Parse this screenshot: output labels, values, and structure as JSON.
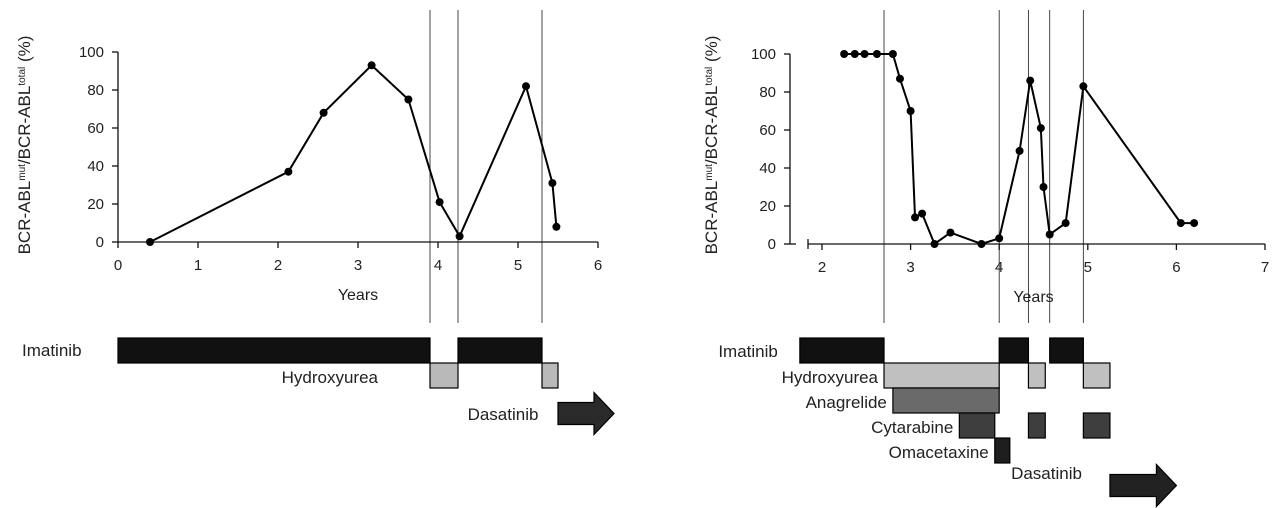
{
  "chart_data": [
    {
      "type": "line",
      "xlabel": "Years",
      "ylabel": {
        "base1": "BCR-ABL",
        "sup1": "mut",
        "sep": "/BCR-ABL",
        "sup2": "total",
        "unit": " (%)"
      },
      "xlim": [
        0,
        6
      ],
      "ylim": [
        0,
        100
      ],
      "xticks": [
        "0",
        "1",
        "2",
        "3",
        "4",
        "5",
        "6"
      ],
      "yticks": [
        "0",
        "20",
        "40",
        "60",
        "80",
        "100"
      ],
      "points": [
        {
          "x": 0.4,
          "y": 0
        },
        {
          "x": 2.13,
          "y": 37
        },
        {
          "x": 2.57,
          "y": 68
        },
        {
          "x": 3.17,
          "y": 93
        },
        {
          "x": 3.63,
          "y": 75
        },
        {
          "x": 4.02,
          "y": 21
        },
        {
          "x": 4.27,
          "y": 3
        },
        {
          "x": 5.1,
          "y": 82
        },
        {
          "x": 5.43,
          "y": 31
        },
        {
          "x": 5.48,
          "y": 8
        }
      ],
      "vlines": [
        3.9,
        4.25,
        5.3
      ],
      "treatments": [
        {
          "name": "Imatinib",
          "color": "#111111",
          "intervals": [
            [
              0,
              3.9
            ],
            [
              4.25,
              5.3
            ]
          ]
        },
        {
          "name": "Hydroxyurea",
          "color": "#b9b9b9",
          "intervals": [
            [
              3.9,
              4.25
            ],
            [
              5.3,
              5.5
            ]
          ]
        },
        {
          "name": "Dasatinib",
          "color": "#2a2a2a",
          "arrow": true,
          "intervals": [
            [
              5.5,
              6.2
            ]
          ]
        }
      ]
    },
    {
      "type": "line",
      "xlabel": "Years",
      "ylabel": {
        "base1": "BCR-ABL",
        "sup1": "mut",
        "sep": "/BCR-ABL",
        "sup2": "total",
        "unit": " (%)"
      },
      "xlim": [
        2,
        7
      ],
      "ylim": [
        0,
        100
      ],
      "xticks": [
        "2",
        "3",
        "4",
        "5",
        "6",
        "7"
      ],
      "yticks": [
        "0",
        "20",
        "40",
        "60",
        "80",
        "100"
      ],
      "points": [
        {
          "x": 2.25,
          "y": 100
        },
        {
          "x": 2.37,
          "y": 100
        },
        {
          "x": 2.48,
          "y": 100
        },
        {
          "x": 2.62,
          "y": 100
        },
        {
          "x": 2.8,
          "y": 100
        },
        {
          "x": 2.88,
          "y": 87
        },
        {
          "x": 3.0,
          "y": 70
        },
        {
          "x": 3.05,
          "y": 14
        },
        {
          "x": 3.13,
          "y": 16
        },
        {
          "x": 3.27,
          "y": 0
        },
        {
          "x": 3.45,
          "y": 6
        },
        {
          "x": 3.8,
          "y": 0
        },
        {
          "x": 4.0,
          "y": 3
        },
        {
          "x": 4.23,
          "y": 49
        },
        {
          "x": 4.35,
          "y": 86
        },
        {
          "x": 4.47,
          "y": 61
        },
        {
          "x": 4.5,
          "y": 30
        },
        {
          "x": 4.57,
          "y": 5
        },
        {
          "x": 4.75,
          "y": 11
        },
        {
          "x": 4.95,
          "y": 83
        },
        {
          "x": 6.05,
          "y": 11
        },
        {
          "x": 6.2,
          "y": 11
        }
      ],
      "vlines": [
        2.7,
        4.0,
        4.33,
        4.57,
        4.95
      ],
      "treatments": [
        {
          "name": "Imatinib",
          "color": "#111111",
          "intervals": [
            [
              1.75,
              2.7
            ],
            [
              4.0,
              4.33
            ],
            [
              4.57,
              4.95
            ]
          ]
        },
        {
          "name": "Hydroxyurea",
          "color": "#c0c0c0",
          "intervals": [
            [
              2.7,
              4.0
            ],
            [
              4.33,
              4.52
            ],
            [
              4.95,
              5.25
            ]
          ]
        },
        {
          "name": "Anagrelide",
          "color": "#6a6a6a",
          "intervals": [
            [
              2.8,
              4.0
            ]
          ]
        },
        {
          "name": "Cytarabine",
          "color": "#3e3e3e",
          "intervals": [
            [
              3.55,
              3.95
            ],
            [
              4.33,
              4.52
            ],
            [
              4.95,
              5.25
            ]
          ]
        },
        {
          "name": "Omacetaxine",
          "color": "#1e1e1e",
          "intervals": [
            [
              3.95,
              4.12
            ]
          ]
        },
        {
          "name": "Dasatinib",
          "color": "#222222",
          "arrow": true,
          "intervals": [
            [
              5.25,
              6.0
            ]
          ]
        }
      ]
    }
  ]
}
